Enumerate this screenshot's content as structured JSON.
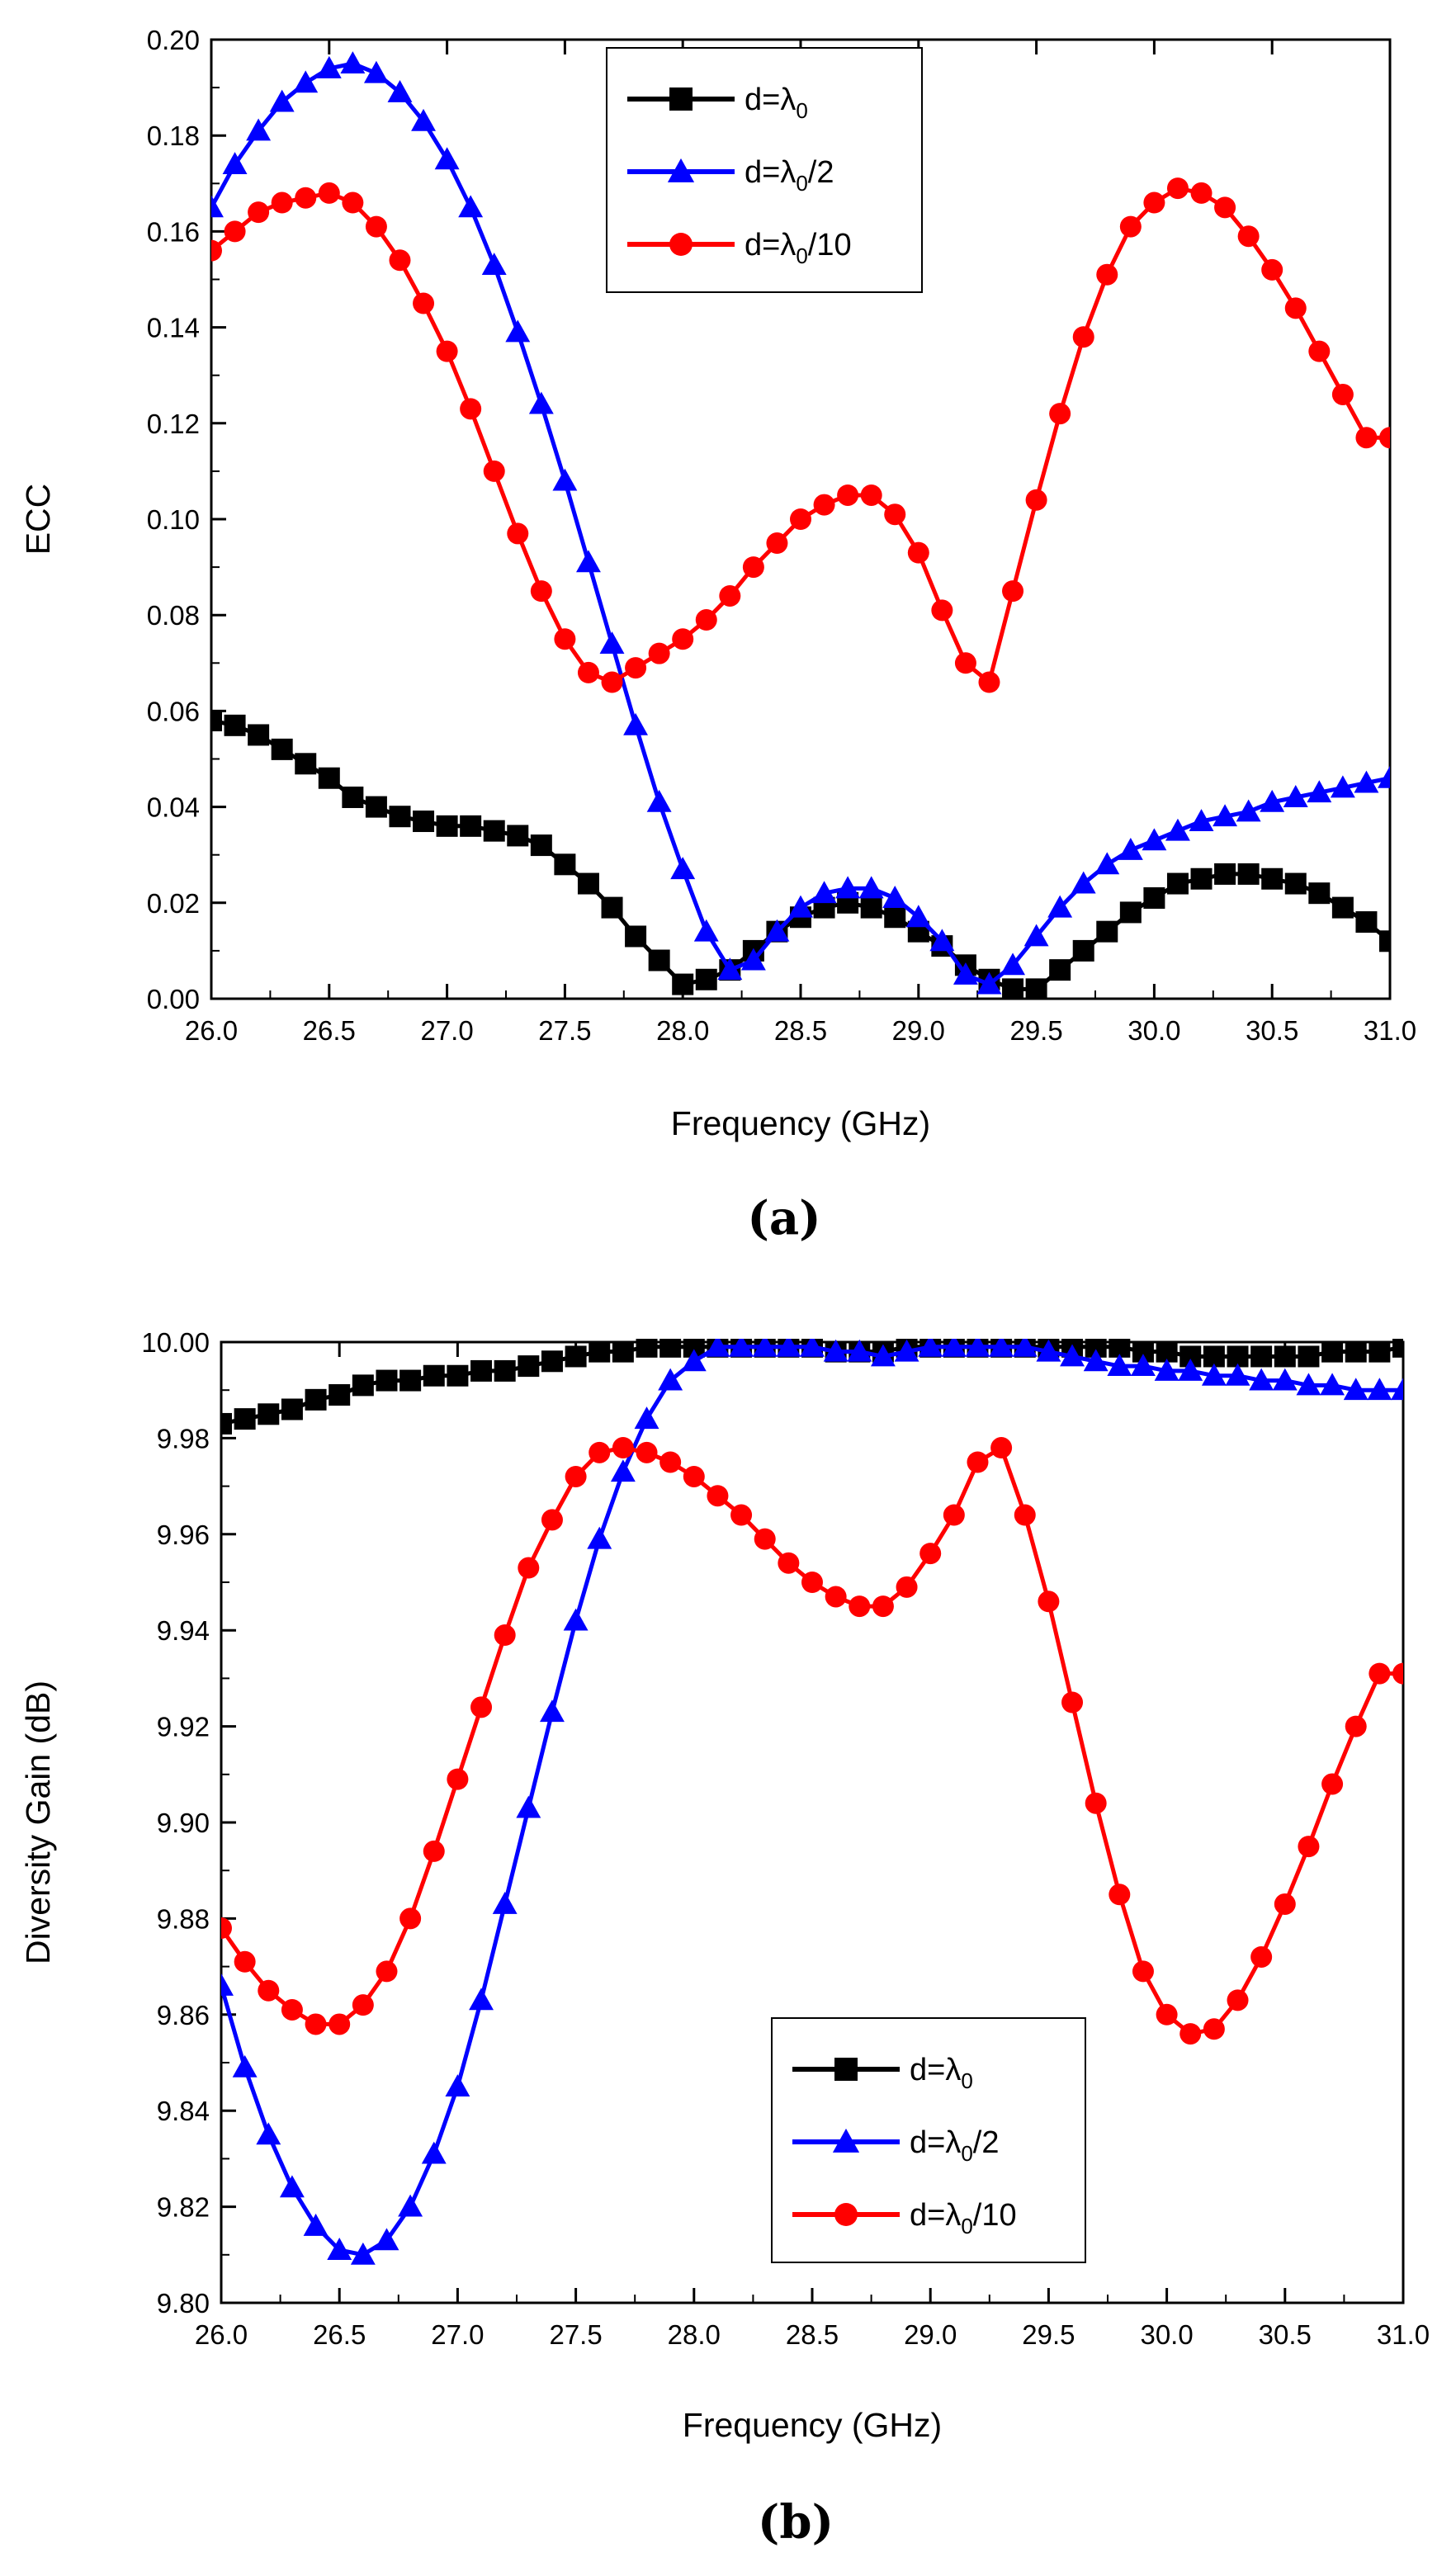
{
  "chart_data": [
    {
      "type": "line",
      "panel_label": "(a)",
      "title": "",
      "xlabel": "Frequency (GHz)",
      "ylabel": "ECC",
      "xlim": [
        26.0,
        31.0
      ],
      "ylim": [
        0.0,
        0.2
      ],
      "xticks": [
        "26.0",
        "26.5",
        "27.0",
        "27.5",
        "28.0",
        "28.5",
        "29.0",
        "29.5",
        "30.0",
        "30.5",
        "31.0"
      ],
      "yticks": [
        "0.00",
        "0.02",
        "0.04",
        "0.06",
        "0.08",
        "0.10",
        "0.12",
        "0.14",
        "0.16",
        "0.18",
        "0.20"
      ],
      "legend_position": "top-center",
      "x": [
        26.0,
        26.1,
        26.2,
        26.3,
        26.4,
        26.5,
        26.6,
        26.7,
        26.8,
        26.9,
        27.0,
        27.1,
        27.2,
        27.3,
        27.4,
        27.5,
        27.6,
        27.7,
        27.8,
        27.9,
        28.0,
        28.1,
        28.2,
        28.3,
        28.4,
        28.5,
        28.6,
        28.7,
        28.8,
        28.9,
        29.0,
        29.1,
        29.2,
        29.3,
        29.4,
        29.5,
        29.6,
        29.7,
        29.8,
        29.9,
        30.0,
        30.1,
        30.2,
        30.3,
        30.4,
        30.5,
        30.6,
        30.7,
        30.8,
        30.9,
        31.0
      ],
      "series": [
        {
          "name_base": "d=λ",
          "name_sub": "0",
          "name_suffix": "",
          "color": "#000000",
          "marker": "square",
          "values": [
            0.058,
            0.057,
            0.055,
            0.052,
            0.049,
            0.046,
            0.042,
            0.04,
            0.038,
            0.037,
            0.036,
            0.036,
            0.035,
            0.034,
            0.032,
            0.028,
            0.024,
            0.019,
            0.013,
            0.008,
            0.003,
            0.004,
            0.006,
            0.01,
            0.014,
            0.017,
            0.019,
            0.02,
            0.019,
            0.017,
            0.014,
            0.011,
            0.007,
            0.004,
            0.002,
            0.002,
            0.006,
            0.01,
            0.014,
            0.018,
            0.021,
            0.024,
            0.025,
            0.026,
            0.026,
            0.025,
            0.024,
            0.022,
            0.019,
            0.016,
            0.012
          ]
        },
        {
          "name_base": "d=λ",
          "name_sub": "0",
          "name_suffix": "/2",
          "color": "#0000ff",
          "marker": "triangle",
          "values": [
            0.165,
            0.174,
            0.181,
            0.187,
            0.191,
            0.194,
            0.195,
            0.193,
            0.189,
            0.183,
            0.175,
            0.165,
            0.153,
            0.139,
            0.124,
            0.108,
            0.091,
            0.074,
            0.057,
            0.041,
            0.027,
            0.014,
            0.006,
            0.008,
            0.014,
            0.019,
            0.022,
            0.023,
            0.023,
            0.021,
            0.017,
            0.012,
            0.005,
            0.003,
            0.007,
            0.013,
            0.019,
            0.024,
            0.028,
            0.031,
            0.033,
            0.035,
            0.037,
            0.038,
            0.039,
            0.041,
            0.042,
            0.043,
            0.044,
            0.045,
            0.046
          ]
        },
        {
          "name_base": "d=λ",
          "name_sub": "0",
          "name_suffix": "/10",
          "color": "#ff0000",
          "marker": "circle",
          "values": [
            0.156,
            0.16,
            0.164,
            0.166,
            0.167,
            0.168,
            0.166,
            0.161,
            0.154,
            0.145,
            0.135,
            0.123,
            0.11,
            0.097,
            0.085,
            0.075,
            0.068,
            0.066,
            0.069,
            0.072,
            0.075,
            0.079,
            0.084,
            0.09,
            0.095,
            0.1,
            0.103,
            0.105,
            0.105,
            0.101,
            0.093,
            0.081,
            0.07,
            0.066,
            0.085,
            0.104,
            0.122,
            0.138,
            0.151,
            0.161,
            0.166,
            0.169,
            0.168,
            0.165,
            0.159,
            0.152,
            0.144,
            0.135,
            0.126,
            0.117,
            0.117
          ]
        }
      ]
    },
    {
      "type": "line",
      "panel_label": "(b)",
      "title": "",
      "xlabel": "Frequency (GHz)",
      "ylabel": "Diversity Gain (dB)",
      "xlim": [
        26.0,
        31.0
      ],
      "ylim": [
        9.8,
        10.0
      ],
      "xticks": [
        "26.0",
        "26.5",
        "27.0",
        "27.5",
        "28.0",
        "28.5",
        "29.0",
        "29.5",
        "30.0",
        "30.5",
        "31.0"
      ],
      "yticks": [
        "9.80",
        "9.82",
        "9.84",
        "9.86",
        "9.88",
        "9.90",
        "9.92",
        "9.94",
        "9.96",
        "9.98",
        "10.00"
      ],
      "legend_position": "bottom-center",
      "x": [
        26.0,
        26.1,
        26.2,
        26.3,
        26.4,
        26.5,
        26.6,
        26.7,
        26.8,
        26.9,
        27.0,
        27.1,
        27.2,
        27.3,
        27.4,
        27.5,
        27.6,
        27.7,
        27.8,
        27.9,
        28.0,
        28.1,
        28.2,
        28.3,
        28.4,
        28.5,
        28.6,
        28.7,
        28.8,
        28.9,
        29.0,
        29.1,
        29.2,
        29.3,
        29.4,
        29.5,
        29.6,
        29.7,
        29.8,
        29.9,
        30.0,
        30.1,
        30.2,
        30.3,
        30.4,
        30.5,
        30.6,
        30.7,
        30.8,
        30.9,
        31.0
      ],
      "series": [
        {
          "name_base": "d=λ",
          "name_sub": "0",
          "name_suffix": "",
          "color": "#000000",
          "marker": "square",
          "values": [
            9.983,
            9.984,
            9.985,
            9.986,
            9.988,
            9.989,
            9.991,
            9.992,
            9.992,
            9.993,
            9.993,
            9.994,
            9.994,
            9.995,
            9.996,
            9.997,
            9.998,
            9.998,
            9.999,
            9.999,
            9.999,
            9.999,
            9.999,
            9.999,
            9.999,
            9.999,
            9.998,
            9.998,
            9.998,
            9.999,
            9.999,
            9.999,
            9.999,
            9.999,
            9.999,
            9.999,
            9.999,
            9.999,
            9.999,
            9.998,
            9.998,
            9.997,
            9.997,
            9.997,
            9.997,
            9.997,
            9.997,
            9.998,
            9.998,
            9.998,
            9.999
          ]
        },
        {
          "name_base": "d=λ",
          "name_sub": "0",
          "name_suffix": "/2",
          "color": "#0000ff",
          "marker": "triangle",
          "values": [
            9.866,
            9.849,
            9.835,
            9.824,
            9.816,
            9.811,
            9.81,
            9.813,
            9.82,
            9.831,
            9.845,
            9.863,
            9.883,
            9.903,
            9.923,
            9.942,
            9.959,
            9.973,
            9.984,
            9.992,
            9.996,
            9.999,
            9.999,
            9.999,
            9.999,
            9.999,
            9.998,
            9.998,
            9.997,
            9.998,
            9.999,
            9.999,
            9.999,
            9.999,
            9.999,
            9.998,
            9.997,
            9.996,
            9.995,
            9.995,
            9.994,
            9.994,
            9.993,
            9.993,
            9.992,
            9.992,
            9.991,
            9.991,
            9.99,
            9.99,
            9.99
          ]
        },
        {
          "name_base": "d=λ",
          "name_sub": "0",
          "name_suffix": "/10",
          "color": "#ff0000",
          "marker": "circle",
          "values": [
            9.878,
            9.871,
            9.865,
            9.861,
            9.858,
            9.858,
            9.862,
            9.869,
            9.88,
            9.894,
            9.909,
            9.924,
            9.939,
            9.953,
            9.963,
            9.972,
            9.977,
            9.978,
            9.977,
            9.975,
            9.972,
            9.968,
            9.964,
            9.959,
            9.954,
            9.95,
            9.947,
            9.945,
            9.945,
            9.949,
            9.956,
            9.964,
            9.975,
            9.978,
            9.964,
            9.946,
            9.925,
            9.904,
            9.885,
            9.869,
            9.86,
            9.856,
            9.857,
            9.863,
            9.872,
            9.883,
            9.895,
            9.908,
            9.92,
            9.931,
            9.931
          ]
        }
      ]
    }
  ]
}
